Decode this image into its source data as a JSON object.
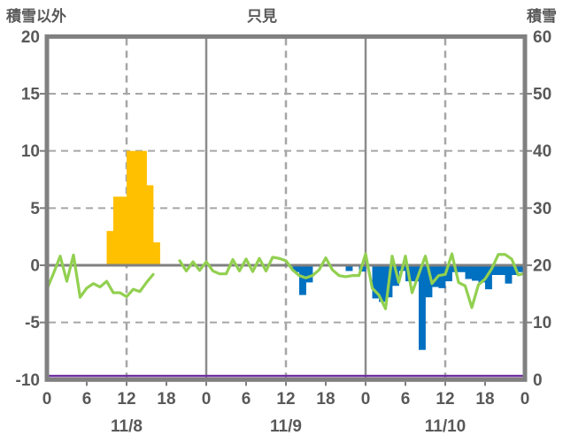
{
  "header": {
    "left_axis_title": "積雪以外",
    "station_title": "只見",
    "right_axis_title": "積雪"
  },
  "chart_data": {
    "type": "combo",
    "title": "只見",
    "left_axis": {
      "label": "積雪以外",
      "min": -10,
      "max": 20,
      "ticks": [
        20,
        15,
        10,
        5,
        0,
        -5,
        -10
      ]
    },
    "right_axis": {
      "label": "積雪",
      "min": 0,
      "max": 60,
      "ticks": [
        60,
        50,
        40,
        30,
        20,
        10,
        0
      ]
    },
    "x_axis": {
      "total_hours": 72,
      "hour_tick_step": 6,
      "hour_labels": [
        "0",
        "6",
        "12",
        "18",
        "0",
        "6",
        "12",
        "18",
        "0",
        "6",
        "12",
        "18",
        "0"
      ],
      "day_labels": [
        "11/8",
        "11/9",
        "11/10"
      ],
      "day_label_center_hours": [
        12,
        36,
        60
      ],
      "solid_gridlines_hours": [
        24,
        48
      ],
      "dashed_gridlines_hours": [
        12,
        36,
        60
      ]
    },
    "series": {
      "sunshine_bars": {
        "name": "sunshine-bars",
        "type": "bar",
        "axis": "left",
        "color": "#FFC000",
        "points": [
          [
            9,
            3
          ],
          [
            10,
            6
          ],
          [
            11,
            6
          ],
          [
            12,
            10
          ],
          [
            13,
            10
          ],
          [
            14,
            10
          ],
          [
            15,
            7
          ],
          [
            16,
            2
          ]
        ]
      },
      "precipitation_bars": {
        "name": "precipitation-bars",
        "type": "bar",
        "axis": "left",
        "color": "#0070C0",
        "points": [
          [
            37,
            -0.6
          ],
          [
            38,
            -2.6
          ],
          [
            39,
            -1.5
          ],
          [
            45,
            -0.5
          ],
          [
            47,
            -0.55
          ],
          [
            49,
            -2.9
          ],
          [
            50,
            -3.2
          ],
          [
            51,
            -2.8
          ],
          [
            52,
            -1.8
          ],
          [
            53,
            -0.5
          ],
          [
            54,
            -1.4
          ],
          [
            55,
            -1.4
          ],
          [
            56,
            -7.4
          ],
          [
            57,
            -2.8
          ],
          [
            58,
            -1.9
          ],
          [
            59,
            -2.0
          ],
          [
            60,
            -1.4
          ],
          [
            61,
            -0.6
          ],
          [
            62,
            -0.6
          ],
          [
            63,
            -1.2
          ],
          [
            64,
            -1.35
          ],
          [
            65,
            -1.5
          ],
          [
            66,
            -2.1
          ],
          [
            67,
            -0.85
          ],
          [
            68,
            -0.85
          ],
          [
            69,
            -1.6
          ],
          [
            70,
            -0.85
          ],
          [
            71,
            -0.6
          ]
        ]
      },
      "temperature_line": {
        "name": "temperature-line",
        "type": "line",
        "axis": "left",
        "color": "#92D050",
        "points": [
          [
            0,
            -2.1
          ],
          [
            1,
            -0.7
          ],
          [
            2,
            0.8
          ],
          [
            3,
            -1.4
          ],
          [
            4,
            0.9
          ],
          [
            5,
            -2.8
          ],
          [
            6,
            -2.0
          ],
          [
            7,
            -1.6
          ],
          [
            8,
            -1.9
          ],
          [
            9,
            -1.4
          ],
          [
            10,
            -2.4
          ],
          [
            11,
            -2.4
          ],
          [
            12,
            -2.75
          ],
          [
            13,
            -2.1
          ],
          [
            14,
            -2.3
          ],
          [
            15,
            -1.5
          ],
          [
            16,
            -0.8
          ],
          null,
          [
            20,
            0.4
          ],
          [
            21,
            -0.5
          ],
          [
            22,
            0.3
          ],
          [
            23,
            -0.45
          ],
          [
            24,
            0.3
          ],
          [
            25,
            -0.5
          ],
          [
            26,
            -0.75
          ],
          [
            27,
            -0.75
          ],
          [
            28,
            0.5
          ],
          [
            29,
            -0.5
          ],
          [
            30,
            0.55
          ],
          [
            31,
            -0.55
          ],
          [
            32,
            0.6
          ],
          [
            33,
            -0.5
          ],
          [
            34,
            0.7
          ],
          [
            35,
            0.6
          ],
          [
            36,
            0.4
          ],
          [
            37,
            -0.4
          ],
          [
            38,
            -0.9
          ],
          [
            39,
            -1.1
          ],
          [
            40,
            -0.9
          ],
          [
            41,
            -0.4
          ],
          [
            42,
            0.65
          ],
          [
            43,
            -0.4
          ],
          [
            44,
            -0.9
          ],
          [
            45,
            -1.0
          ],
          [
            46,
            -0.9
          ],
          [
            47,
            -0.9
          ],
          [
            48,
            1.0
          ],
          [
            49,
            -2.0
          ],
          [
            50,
            -2.6
          ],
          [
            51,
            -3.8
          ],
          [
            52,
            0.8
          ],
          [
            53,
            -1.5
          ],
          [
            54,
            0.8
          ],
          [
            55,
            -2.4
          ],
          [
            56,
            -0.8
          ],
          [
            57,
            0.8
          ],
          [
            58,
            -1.6
          ],
          [
            59,
            -0.9
          ],
          [
            60,
            -0.8
          ],
          [
            61,
            1.0
          ],
          [
            62,
            -1.5
          ],
          [
            63,
            -1.8
          ],
          [
            64,
            -3.7
          ],
          [
            65,
            -1.7
          ],
          [
            66,
            -1.2
          ],
          [
            67,
            -0.3
          ],
          [
            68,
            0.95
          ],
          [
            69,
            0.95
          ],
          [
            70,
            0.55
          ],
          [
            71,
            -0.85
          ],
          [
            72,
            -0.7
          ]
        ]
      },
      "snow_depth_line": {
        "name": "snow-depth-line",
        "type": "line",
        "axis": "right",
        "color": "#7030A0",
        "constant_value": 0
      }
    },
    "style": {
      "grid_dashed_color": "#A6A6A6",
      "grid_solid_color": "#8C8C8C",
      "zero_line_color": "#808080",
      "border_color": "#808080",
      "text_color": "#595959"
    }
  }
}
